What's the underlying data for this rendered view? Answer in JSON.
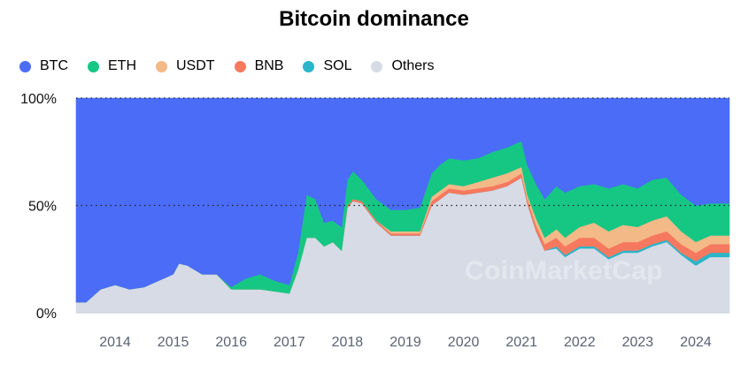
{
  "chart_data": {
    "type": "area",
    "stacked": true,
    "title": "Bitcoin dominance",
    "xlabel": "",
    "ylabel": "",
    "ylim": [
      0,
      100
    ],
    "xlim": [
      2013.33,
      2024.58
    ],
    "y_ticks": [
      "0%",
      "50%",
      "100%"
    ],
    "x_ticks": [
      "2014",
      "2015",
      "2016",
      "2017",
      "2018",
      "2019",
      "2020",
      "2021",
      "2022",
      "2023",
      "2024"
    ],
    "legend_position": "top-left",
    "watermark": "CoinMarketCap",
    "x": [
      2013.33,
      2013.5,
      2013.75,
      2014.0,
      2014.25,
      2014.5,
      2014.75,
      2015.0,
      2015.1,
      2015.25,
      2015.5,
      2015.75,
      2016.0,
      2016.25,
      2016.5,
      2016.75,
      2017.0,
      2017.15,
      2017.3,
      2017.45,
      2017.6,
      2017.75,
      2017.9,
      2018.0,
      2018.1,
      2018.25,
      2018.5,
      2018.75,
      2019.0,
      2019.25,
      2019.45,
      2019.6,
      2019.75,
      2020.0,
      2020.25,
      2020.5,
      2020.75,
      2021.0,
      2021.1,
      2021.25,
      2021.4,
      2021.6,
      2021.75,
      2022.0,
      2022.25,
      2022.5,
      2022.75,
      2023.0,
      2023.25,
      2023.5,
      2023.75,
      2024.0,
      2024.25,
      2024.58
    ],
    "series": [
      {
        "name": "BTC",
        "color": "#4a6cf7",
        "values": [
          95,
          95,
          89,
          87,
          89,
          88,
          85,
          82,
          77,
          78,
          82,
          82,
          88,
          84,
          82,
          85,
          87,
          72,
          45,
          47,
          58,
          57,
          60,
          38,
          34,
          38,
          47,
          52,
          52,
          51,
          35,
          31,
          28,
          29,
          28,
          25,
          23,
          20,
          31,
          40,
          47,
          41,
          44,
          41,
          40,
          42,
          40,
          42,
          38,
          37,
          45,
          50,
          49,
          49
        ]
      },
      {
        "name": "ETH",
        "color": "#16c784",
        "values": [
          0,
          0,
          0,
          0,
          0,
          0,
          0,
          0,
          0,
          0,
          0,
          0,
          1,
          5,
          7,
          5,
          4,
          8,
          20,
          18,
          11,
          10,
          11,
          12,
          13,
          10,
          10,
          10,
          10,
          11,
          11,
          12,
          12,
          12,
          11,
          12,
          12,
          12,
          14,
          16,
          18,
          20,
          21,
          19,
          18,
          20,
          19,
          18,
          19,
          18,
          17,
          17,
          15,
          15
        ]
      },
      {
        "name": "USDT",
        "color": "#f3b987",
        "values": [
          0,
          0,
          0,
          0,
          0,
          0,
          0,
          0,
          0,
          0,
          0,
          0,
          0,
          0,
          0,
          0,
          0,
          0,
          0,
          0,
          0,
          0,
          0,
          0,
          0,
          0,
          0,
          1,
          1,
          1,
          2,
          2,
          2,
          2,
          3,
          4,
          4,
          3,
          2,
          3,
          3,
          4,
          4,
          5,
          7,
          8,
          8,
          7,
          7,
          7,
          6,
          5,
          4,
          4
        ]
      },
      {
        "name": "BNB",
        "color": "#f6795f",
        "values": [
          0,
          0,
          0,
          0,
          0,
          0,
          0,
          0,
          0,
          0,
          0,
          0,
          0,
          0,
          0,
          0,
          0,
          0,
          0,
          0,
          0,
          0,
          0,
          1,
          1,
          1,
          1,
          1,
          1,
          1,
          2,
          2,
          2,
          2,
          2,
          2,
          2,
          2,
          2,
          3,
          3,
          4,
          4,
          4,
          4,
          4,
          4,
          4,
          4,
          4,
          4,
          4,
          4,
          4
        ]
      },
      {
        "name": "SOL",
        "color": "#2cb5c9",
        "values": [
          0,
          0,
          0,
          0,
          0,
          0,
          0,
          0,
          0,
          0,
          0,
          0,
          0,
          0,
          0,
          0,
          0,
          0,
          0,
          0,
          0,
          0,
          0,
          0,
          0,
          0,
          0,
          0,
          0,
          0,
          0,
          0,
          0,
          0,
          0,
          0,
          0,
          0,
          0,
          0,
          0,
          1,
          1,
          1,
          1,
          1,
          1,
          1,
          1,
          1,
          1,
          2,
          2,
          2
        ]
      },
      {
        "name": "Others",
        "color": "#d6dbe6",
        "values": [
          5,
          5,
          11,
          13,
          11,
          12,
          15,
          18,
          23,
          22,
          18,
          18,
          11,
          11,
          11,
          10,
          9,
          20,
          35,
          35,
          31,
          33,
          29,
          49,
          52,
          51,
          42,
          36,
          36,
          36,
          50,
          53,
          56,
          55,
          56,
          57,
          59,
          63,
          51,
          38,
          29,
          30,
          26,
          30,
          30,
          25,
          28,
          28,
          31,
          33,
          27,
          22,
          26,
          26
        ]
      }
    ]
  }
}
